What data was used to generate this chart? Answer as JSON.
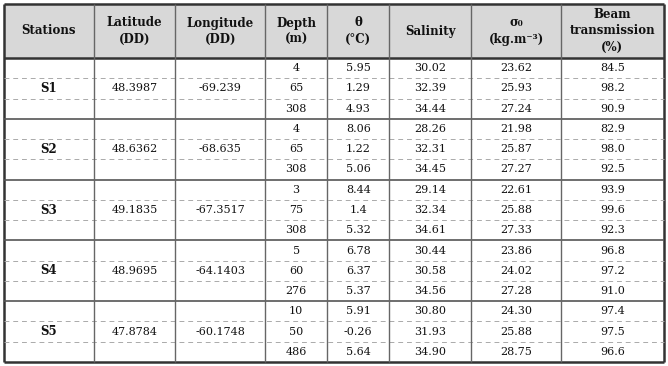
{
  "headers": [
    "Stations",
    "Latitude\n(DD)",
    "Longitude\n(DD)",
    "Depth\n(m)",
    "θ\n(°C)",
    "Salinity",
    "σ₀\n(kg.m⁻³)",
    "Beam\ntransmission\n(%)"
  ],
  "stations": [
    {
      "name": "S1",
      "lat": "48.3987",
      "lon": "-69.239",
      "rows": [
        [
          "4",
          "5.95",
          "30.02",
          "23.62",
          "84.5"
        ],
        [
          "65",
          "1.29",
          "32.39",
          "25.93",
          "98.2"
        ],
        [
          "308",
          "4.93",
          "34.44",
          "27.24",
          "90.9"
        ]
      ]
    },
    {
      "name": "S2",
      "lat": "48.6362",
      "lon": "-68.635",
      "rows": [
        [
          "4",
          "8.06",
          "28.26",
          "21.98",
          "82.9"
        ],
        [
          "65",
          "1.22",
          "32.31",
          "25.87",
          "98.0"
        ],
        [
          "308",
          "5.06",
          "34.45",
          "27.27",
          "92.5"
        ]
      ]
    },
    {
      "name": "S3",
      "lat": "49.1835",
      "lon": "-67.3517",
      "rows": [
        [
          "3",
          "8.44",
          "29.14",
          "22.61",
          "93.9"
        ],
        [
          "75",
          "1.4",
          "32.34",
          "25.88",
          "99.6"
        ],
        [
          "308",
          "5.32",
          "34.61",
          "27.33",
          "92.3"
        ]
      ]
    },
    {
      "name": "S4",
      "lat": "48.9695",
      "lon": "-64.1403",
      "rows": [
        [
          "5",
          "6.78",
          "30.44",
          "23.86",
          "96.8"
        ],
        [
          "60",
          "6.37",
          "30.58",
          "24.02",
          "97.2"
        ],
        [
          "276",
          "5.37",
          "34.56",
          "27.28",
          "91.0"
        ]
      ]
    },
    {
      "name": "S5",
      "lat": "47.8784",
      "lon": "-60.1748",
      "rows": [
        [
          "10",
          "5.91",
          "30.80",
          "24.30",
          "97.4"
        ],
        [
          "50",
          "-0.26",
          "31.93",
          "25.88",
          "97.5"
        ],
        [
          "486",
          "5.64",
          "34.90",
          "28.75",
          "96.6"
        ]
      ]
    }
  ],
  "bg_color": "#ffffff",
  "header_bg": "#d8d8d8",
  "solid_line_color": "#555555",
  "dashed_color": "#aaaaaa",
  "text_color": "#111111",
  "font_size": 8.0,
  "header_font_size": 8.5,
  "col_props": [
    0.118,
    0.108,
    0.118,
    0.082,
    0.082,
    0.108,
    0.118,
    0.136
  ]
}
